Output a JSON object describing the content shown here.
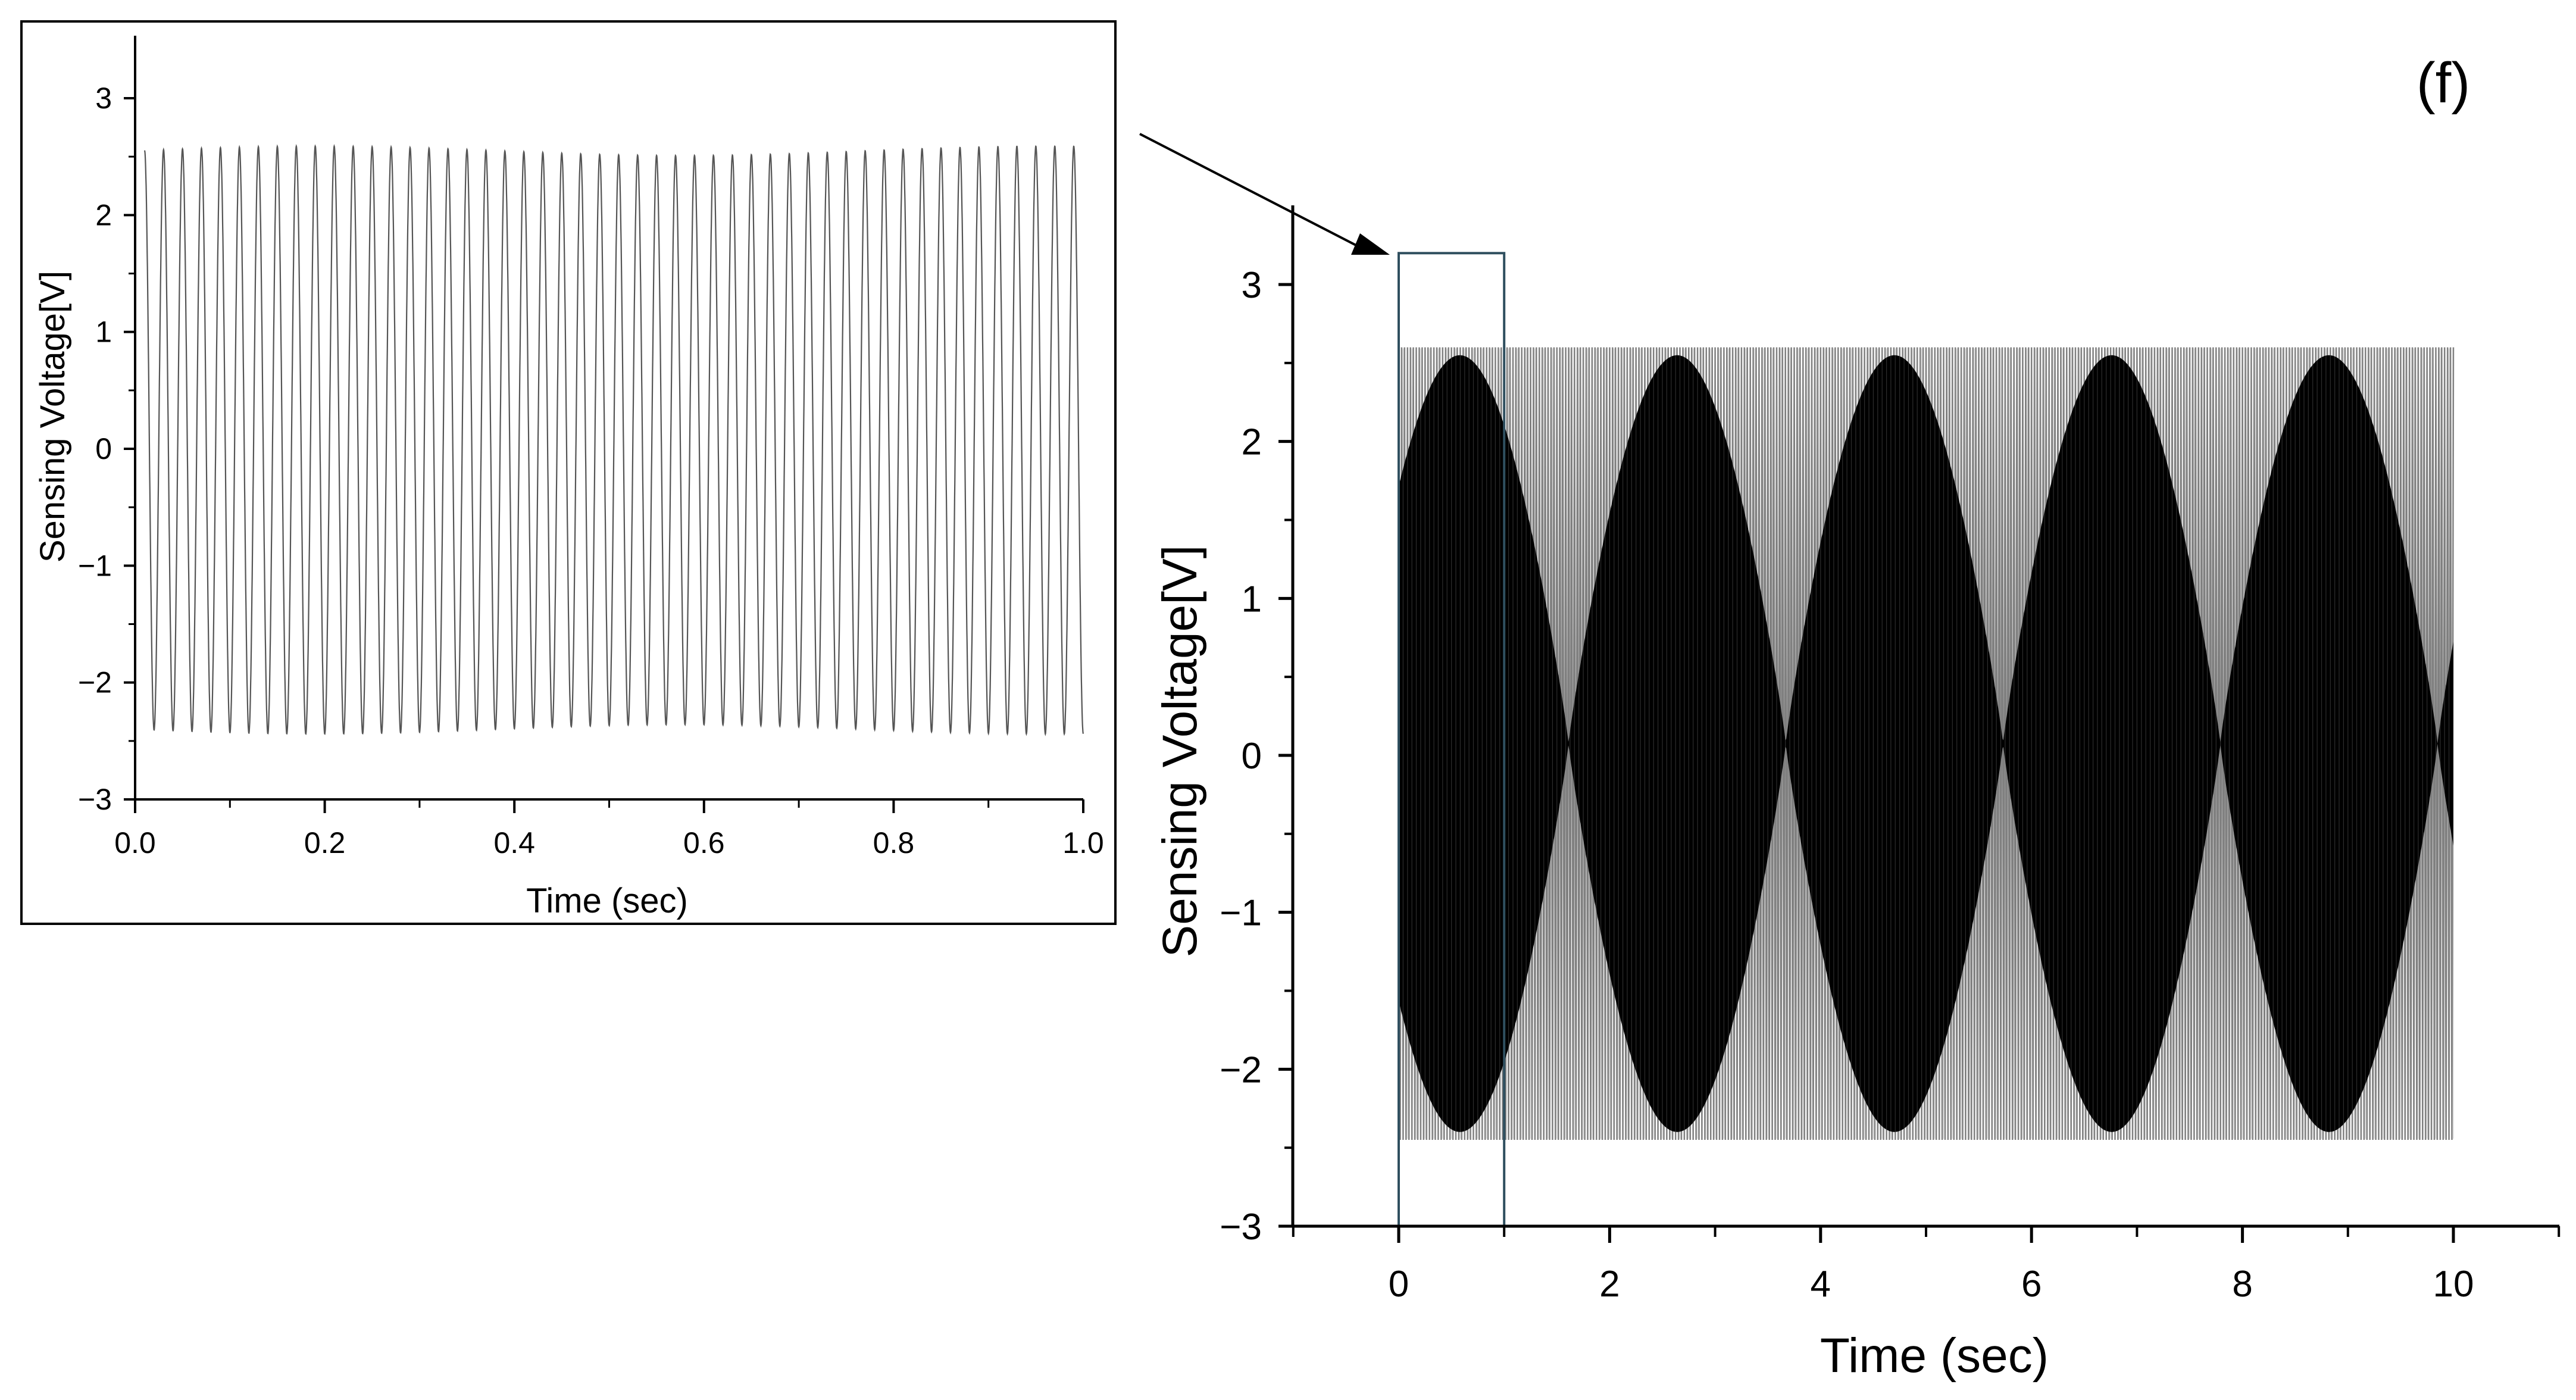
{
  "panel_label": "(f)",
  "colors": {
    "axis": "#000000",
    "trace_dark": "#000000",
    "trace_light": "#808080",
    "inset_trace": "#555555",
    "zoom_box": "#2f4f5f"
  },
  "chart_data": [
    {
      "id": "inset",
      "type": "line",
      "title": "",
      "xlabel": "Time (sec)",
      "ylabel": "Sensing Voltage[V]",
      "xlim": [
        0.0,
        1.0
      ],
      "ylim": [
        -3,
        3.5
      ],
      "xticks": [
        0.0,
        0.2,
        0.4,
        0.6,
        0.8,
        1.0
      ],
      "xtick_labels": [
        "0.0",
        "0.2",
        "0.4",
        "0.6",
        "0.8",
        "1.0"
      ],
      "yticks": [
        -3,
        -2,
        -1,
        0,
        1,
        2,
        3
      ],
      "ytick_labels": [
        "−3",
        "−2",
        "−1",
        "0",
        "1",
        "2",
        "3"
      ],
      "grid": false,
      "series": [
        {
          "frequency_hz": 50,
          "y_max": 2.55,
          "y_min": -2.4,
          "x_start": 0.01,
          "x_end": 1.0
        }
      ]
    },
    {
      "id": "main",
      "type": "line",
      "title": "",
      "xlabel": "Time (sec)",
      "ylabel": "Sensing Voltage[V]",
      "xlim": [
        -1,
        11
      ],
      "ylim": [
        -3,
        3.5
      ],
      "xticks": [
        0,
        2,
        4,
        6,
        8,
        10
      ],
      "xtick_labels": [
        "0",
        "2",
        "4",
        "6",
        "8",
        "10"
      ],
      "yticks": [
        -3,
        -2,
        -1,
        0,
        1,
        2,
        3
      ],
      "ytick_labels": [
        "−3",
        "−2",
        "−1",
        "0",
        "1",
        "2",
        "3"
      ],
      "grid": false,
      "series": [
        {
          "x_start": 0,
          "x_end": 10,
          "y_max": 2.6,
          "y_min": -2.45,
          "envelope_beat_period_sec": 2.06
        }
      ],
      "zoom_region": {
        "x": [
          0,
          1
        ],
        "y": [
          -3,
          3.2
        ]
      }
    }
  ]
}
